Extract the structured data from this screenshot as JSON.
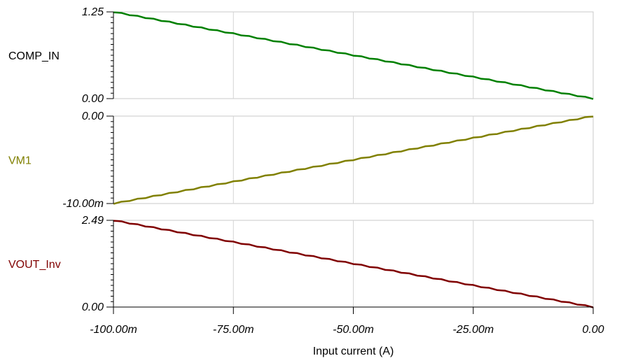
{
  "chart_data": {
    "type": "line",
    "xlabel": "Input current (A)",
    "x_range": [
      -0.1,
      0.0
    ],
    "x_ticks": [
      -0.1,
      -0.075,
      -0.05,
      -0.025,
      0.0
    ],
    "x_tick_labels": [
      "-100.00m",
      "-75.00m",
      "-50.00m",
      "-25.00m",
      "0.00"
    ],
    "grid": "vertical",
    "panels": [
      {
        "name": "COMP_IN",
        "color": "#008000",
        "ylim": [
          0.0,
          1.25
        ],
        "y_tick_labels": [
          "1.25",
          "0.00"
        ],
        "x": [
          -0.1,
          0.0
        ],
        "y": [
          1.25,
          0.0
        ]
      },
      {
        "name": "VM1",
        "color": "#808000",
        "ylim": [
          -0.01,
          0.0
        ],
        "y_tick_labels": [
          "0.00",
          "-10.00m"
        ],
        "x": [
          -0.1,
          0.0
        ],
        "y": [
          -0.01,
          0.0
        ]
      },
      {
        "name": "VOUT_Inv",
        "color": "#800000",
        "ylim": [
          0.0,
          2.49
        ],
        "y_tick_labels": [
          "2.49",
          "0.00"
        ],
        "x": [
          -0.1,
          0.0
        ],
        "y": [
          2.49,
          0.0
        ]
      }
    ]
  }
}
